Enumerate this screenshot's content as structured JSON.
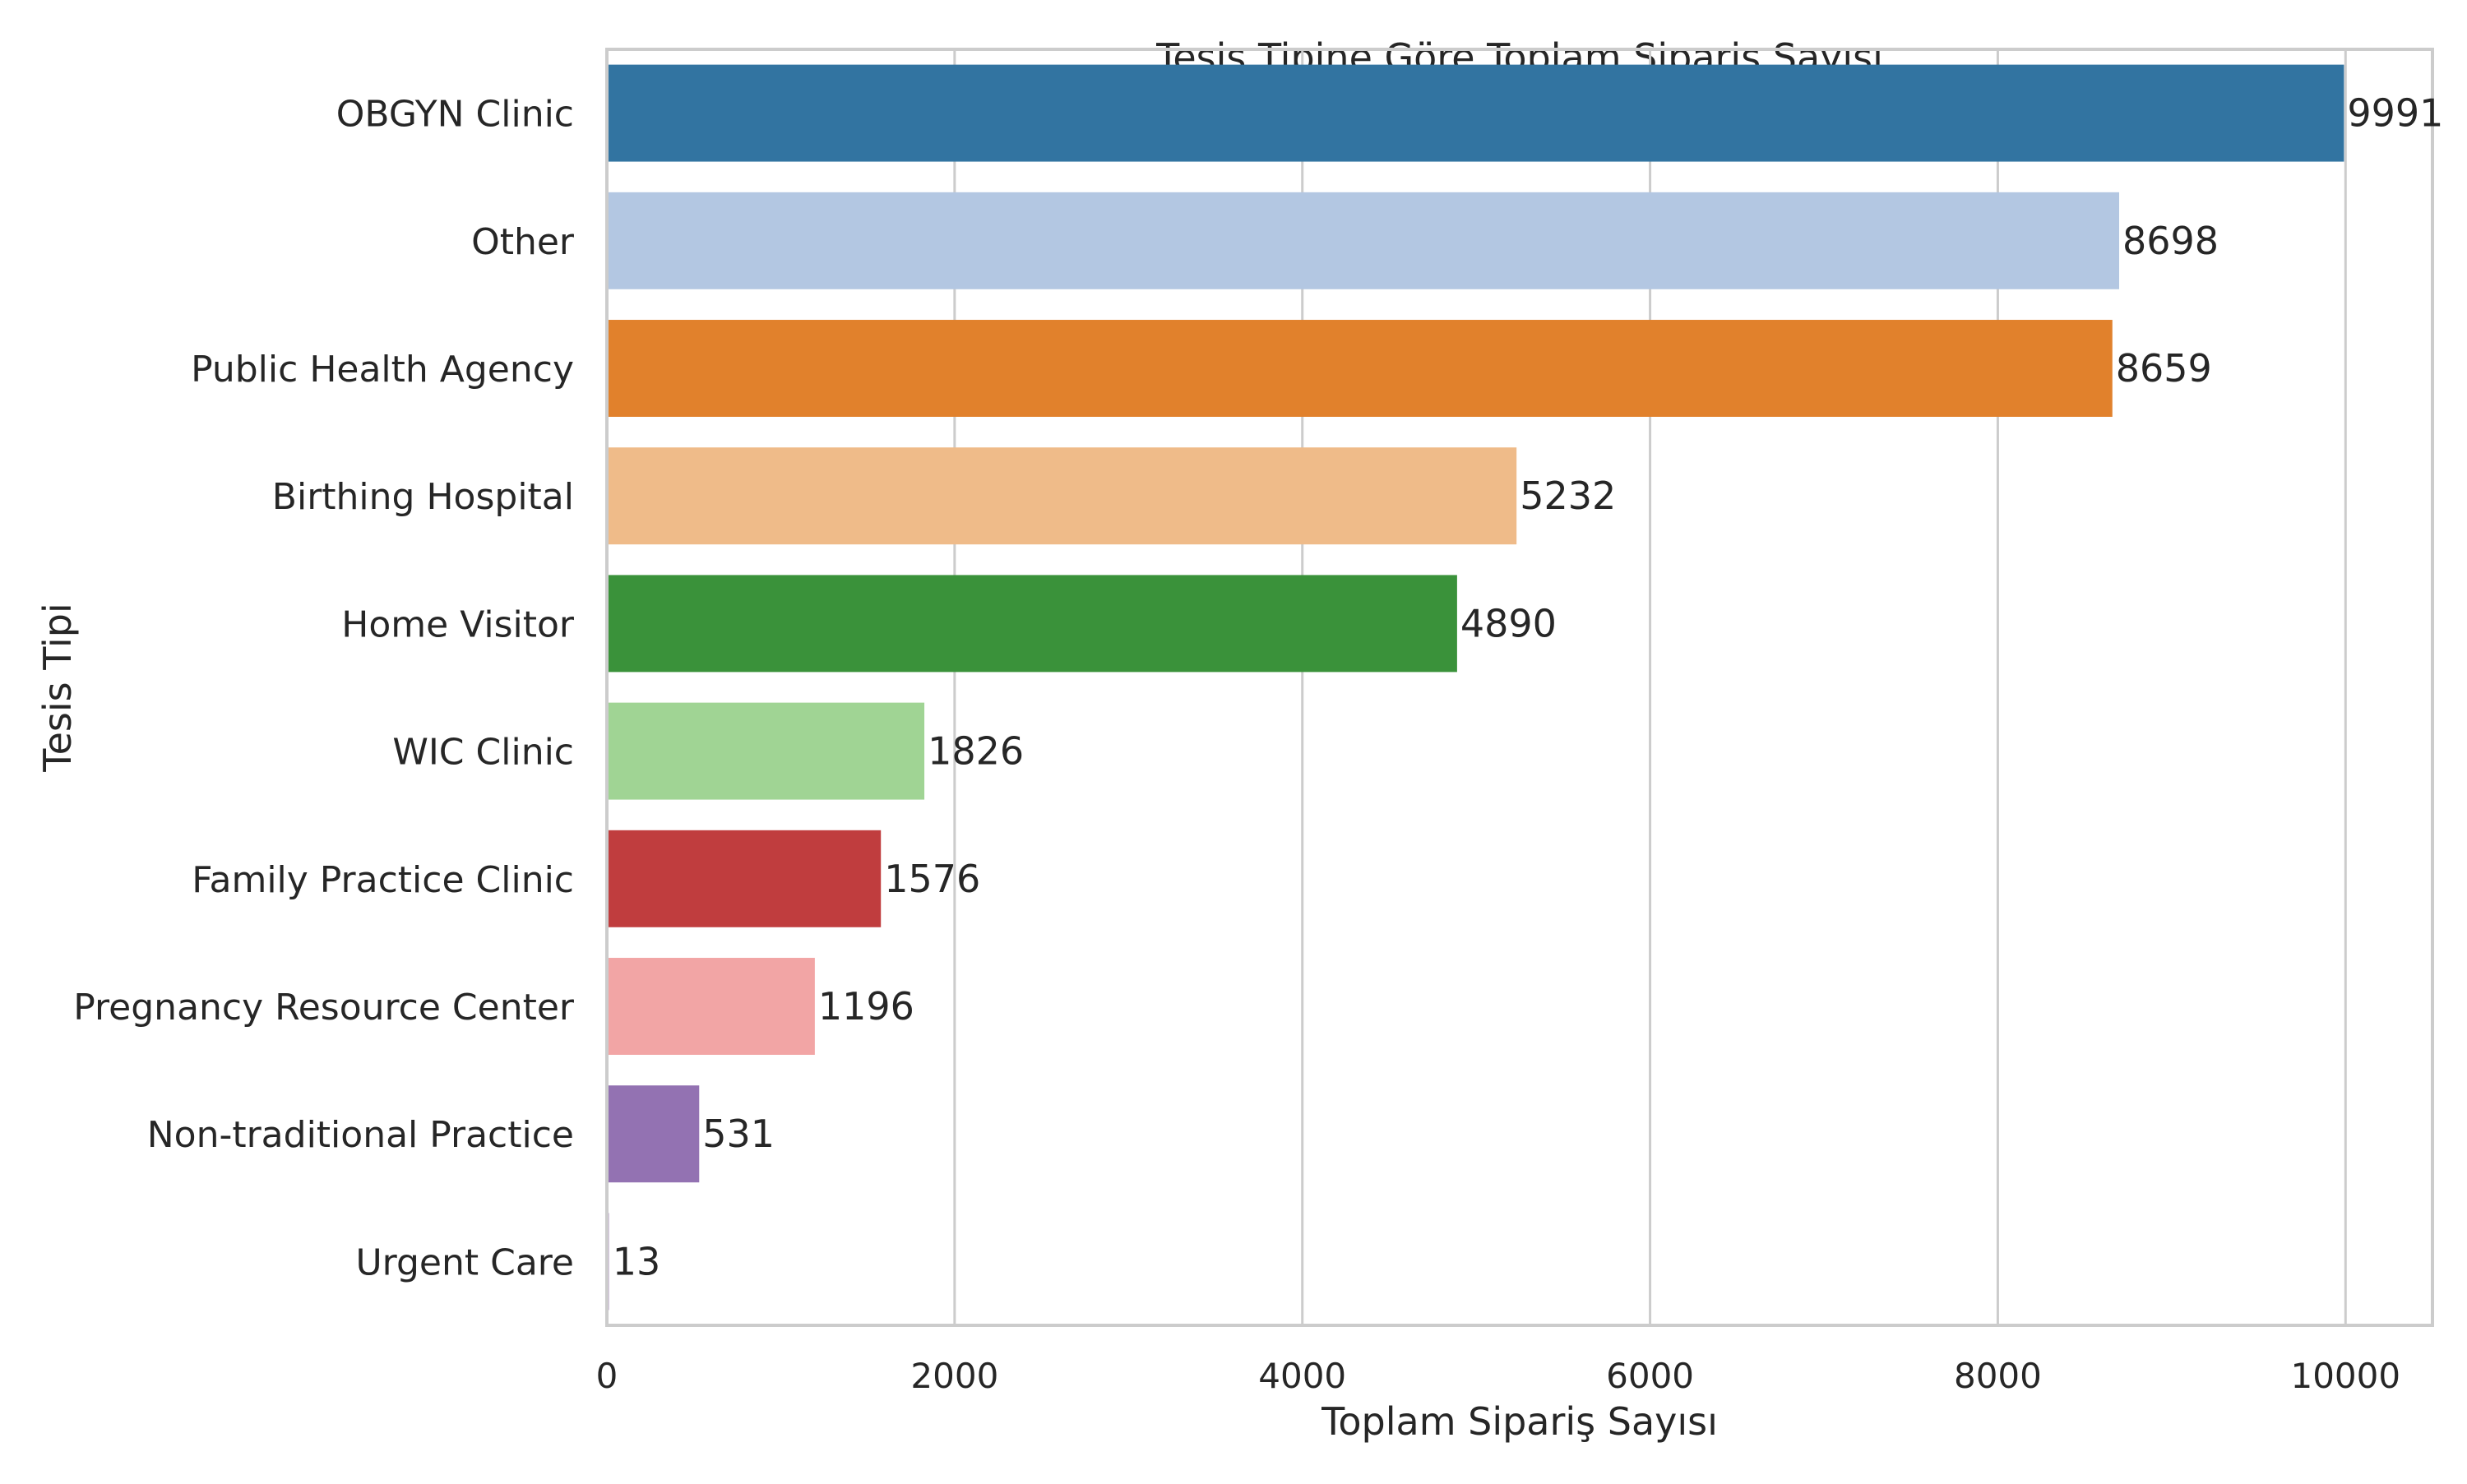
{
  "chart_data": {
    "type": "bar",
    "orientation": "horizontal",
    "title": "Tesis Tipine Göre Toplam Sipariş Sayısı",
    "xlabel": "Toplam Sipariş Sayısı",
    "ylabel": "Tesis Tipi",
    "xlim": [
      0,
      10500
    ],
    "xticks": [
      0,
      2000,
      4000,
      6000,
      8000,
      10000
    ],
    "grid": "vertical",
    "categories": [
      "OBGYN Clinic",
      "Other",
      "Public Health Agency",
      "Birthing Hospital",
      "Home Visitor",
      "WIC Clinic",
      "Family Practice Clinic",
      "Pregnancy Resource Center",
      "Non-traditional Practice",
      "Urgent Care"
    ],
    "values": [
      9991,
      8698,
      8659,
      5232,
      4890,
      1826,
      1576,
      1196,
      531,
      13
    ],
    "data_labels": [
      "9991",
      "8698",
      "8659",
      "5232",
      "4890",
      "1826",
      "1576",
      "1196",
      "531",
      "13"
    ],
    "colors": [
      "#3274a1",
      "#b3c7e2",
      "#e1812c",
      "#efbb89",
      "#3a923a",
      "#a0d494",
      "#c03d3e",
      "#f2a5a5",
      "#9372b2",
      "#c5b0d5"
    ]
  }
}
